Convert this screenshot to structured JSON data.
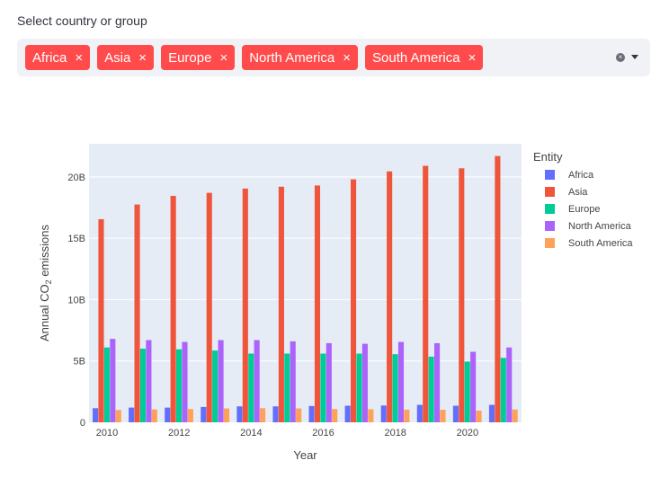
{
  "selector": {
    "label": "Select country or group",
    "selected": [
      "Africa",
      "Asia",
      "Europe",
      "North America",
      "South America"
    ],
    "remove_glyph": "×",
    "clear_glyph": "×"
  },
  "chart_data": {
    "type": "bar",
    "xlabel": "Year",
    "ylabel_prefix": "Annual CO",
    "ylabel_sub": "2",
    "ylabel_suffix": " emissions",
    "legend_title": "Entity",
    "legend_position": "right",
    "grid": true,
    "ylim": [
      0,
      22700000000
    ],
    "x": [
      2010,
      2011,
      2012,
      2013,
      2014,
      2015,
      2016,
      2017,
      2018,
      2019,
      2020,
      2021
    ],
    "x_ticks": [
      2010,
      2012,
      2014,
      2016,
      2018,
      2020
    ],
    "y_ticks": [
      0,
      5000000000,
      10000000000,
      15000000000,
      20000000000
    ],
    "y_tick_labels": [
      "0",
      "5B",
      "10B",
      "15B",
      "20B"
    ],
    "series": [
      {
        "name": "Africa",
        "color": "#636efa",
        "values": [
          1150000000,
          1200000000,
          1200000000,
          1250000000,
          1300000000,
          1300000000,
          1330000000,
          1350000000,
          1370000000,
          1420000000,
          1350000000,
          1420000000
        ]
      },
      {
        "name": "Asia",
        "color": "#ef553b",
        "values": [
          16550000000,
          17750000000,
          18450000000,
          18700000000,
          19050000000,
          19200000000,
          19300000000,
          19800000000,
          20450000000,
          20900000000,
          20700000000,
          21700000000
        ]
      },
      {
        "name": "Europe",
        "color": "#00cc96",
        "values": [
          6100000000,
          6000000000,
          5950000000,
          5850000000,
          5600000000,
          5600000000,
          5600000000,
          5600000000,
          5550000000,
          5350000000,
          4950000000,
          5250000000
        ]
      },
      {
        "name": "North America",
        "color": "#ab63fa",
        "values": [
          6800000000,
          6700000000,
          6550000000,
          6700000000,
          6700000000,
          6600000000,
          6450000000,
          6400000000,
          6550000000,
          6450000000,
          5750000000,
          6100000000
        ]
      },
      {
        "name": "South America",
        "color": "#ffa15a",
        "values": [
          1000000000,
          1050000000,
          1080000000,
          1130000000,
          1150000000,
          1130000000,
          1080000000,
          1070000000,
          1030000000,
          1020000000,
          950000000,
          1040000000
        ]
      }
    ]
  }
}
